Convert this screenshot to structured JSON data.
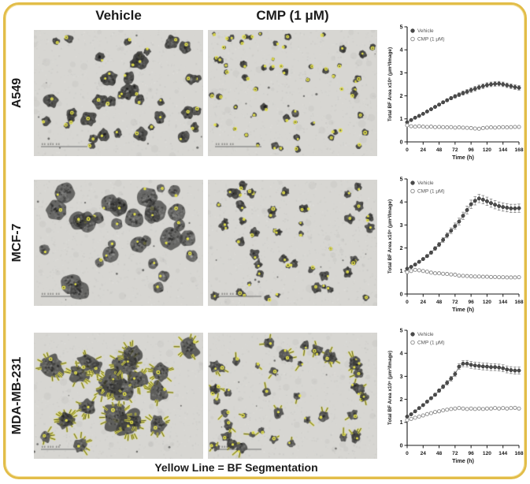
{
  "header": {
    "col1": "Vehicle",
    "col2": "CMP (1 μM)"
  },
  "rows": [
    {
      "label": "A549"
    },
    {
      "label": "MCF-7"
    },
    {
      "label": "MDA-MB-231"
    }
  ],
  "caption": "Yellow Line = BF Segmentation",
  "colors": {
    "frame": "#e2bd49",
    "micro_bg": "#d7d6d2",
    "spheroid": "#3c3c3a",
    "segmentation_outline": "#e6e34a",
    "vehicle_marker": "#4b4b4b",
    "cmp_marker_stroke": "#8a8a8a",
    "axis": "#1a1a1a",
    "error_bar": "#7a7a7a"
  },
  "panels": [
    {
      "cell_line": "A549",
      "treatment": "Vehicle",
      "seed": 7,
      "count": 40,
      "rmin": 3.5,
      "rmax": 10,
      "irr": 0.25,
      "spike": 0,
      "dark": 0.88
    },
    {
      "cell_line": "A549",
      "treatment": "CMP (1 μM)",
      "seed": 13,
      "count": 60,
      "rmin": 1.8,
      "rmax": 5,
      "irr": 0.22,
      "spike": 0,
      "dark": 0.92
    },
    {
      "cell_line": "MCF-7",
      "treatment": "Vehicle",
      "seed": 21,
      "count": 33,
      "rmin": 5,
      "rmax": 14,
      "irr": 0.12,
      "spike": 0,
      "dark": 0.72
    },
    {
      "cell_line": "MCF-7",
      "treatment": "CMP (1 μM)",
      "seed": 29,
      "count": 50,
      "rmin": 2.5,
      "rmax": 6.5,
      "irr": 0.35,
      "spike": 0,
      "dark": 0.88
    },
    {
      "cell_line": "MDA-MB-231",
      "treatment": "Vehicle",
      "seed": 37,
      "count": 22,
      "rmin": 6,
      "rmax": 16,
      "irr": 0.3,
      "spike": 1,
      "dark": 0.78
    },
    {
      "cell_line": "MDA-MB-231",
      "treatment": "CMP (1 μM)",
      "seed": 43,
      "count": 48,
      "rmin": 3,
      "rmax": 7.5,
      "irr": 0.3,
      "spike": 0.3,
      "dark": 0.82
    }
  ],
  "chart_data": [
    {
      "type": "line",
      "cell_line": "A549",
      "xlabel": "Time (h)",
      "ylabel": "Total BF Area x10⁶ (μm²/Image)",
      "xlim": [
        0,
        168
      ],
      "ylim": [
        0,
        5
      ],
      "xticks": [
        0,
        24,
        48,
        72,
        96,
        120,
        144,
        168
      ],
      "yticks": [
        0,
        1,
        2,
        3,
        4,
        5
      ],
      "legend_position": "top-left",
      "x": [
        0,
        6,
        12,
        18,
        24,
        30,
        36,
        42,
        48,
        54,
        60,
        66,
        72,
        78,
        84,
        90,
        96,
        102,
        108,
        114,
        120,
        126,
        132,
        138,
        144,
        150,
        156,
        162,
        168
      ],
      "series": [
        {
          "name": "Vehicle",
          "marker": "filled",
          "values": [
            0.85,
            0.95,
            1.05,
            1.13,
            1.22,
            1.32,
            1.42,
            1.52,
            1.62,
            1.72,
            1.81,
            1.9,
            1.98,
            2.05,
            2.12,
            2.18,
            2.25,
            2.31,
            2.37,
            2.42,
            2.47,
            2.5,
            2.52,
            2.53,
            2.5,
            2.46,
            2.42,
            2.38,
            2.35
          ],
          "err_max": 0.1
        },
        {
          "name": "CMP (1 μM)",
          "marker": "open",
          "values": [
            0.72,
            0.68,
            0.66,
            0.68,
            0.66,
            0.65,
            0.66,
            0.64,
            0.65,
            0.64,
            0.63,
            0.64,
            0.62,
            0.63,
            0.62,
            0.61,
            0.6,
            0.58,
            0.57,
            0.6,
            0.62,
            0.63,
            0.62,
            0.63,
            0.64,
            0.63,
            0.64,
            0.65,
            0.65
          ],
          "err_max": 0.02
        }
      ]
    },
    {
      "type": "line",
      "cell_line": "MCF-7",
      "xlabel": "Time (h)",
      "ylabel": "Total BF Area x10⁶ (μm²/Image)",
      "xlim": [
        0,
        168
      ],
      "ylim": [
        0,
        5
      ],
      "xticks": [
        0,
        24,
        48,
        72,
        96,
        120,
        144,
        168
      ],
      "yticks": [
        0,
        1,
        2,
        3,
        4,
        5
      ],
      "legend_position": "top-left",
      "x": [
        0,
        6,
        12,
        18,
        24,
        30,
        36,
        42,
        48,
        54,
        60,
        66,
        72,
        78,
        84,
        90,
        96,
        102,
        108,
        114,
        120,
        126,
        132,
        138,
        144,
        150,
        156,
        162,
        168
      ],
      "series": [
        {
          "name": "Vehicle",
          "marker": "filled",
          "values": [
            1.1,
            1.18,
            1.28,
            1.4,
            1.52,
            1.65,
            1.8,
            1.98,
            2.15,
            2.35,
            2.55,
            2.75,
            2.95,
            3.15,
            3.4,
            3.65,
            3.9,
            4.05,
            4.15,
            4.1,
            4.03,
            3.95,
            3.88,
            3.82,
            3.78,
            3.75,
            3.72,
            3.72,
            3.73
          ],
          "err_max": 0.18
        },
        {
          "name": "CMP (1 μM)",
          "marker": "open",
          "values": [
            0.95,
            1.0,
            1.05,
            1.03,
            1.0,
            0.97,
            0.93,
            0.9,
            0.9,
            0.88,
            0.87,
            0.85,
            0.84,
            0.8,
            0.79,
            0.78,
            0.77,
            0.76,
            0.76,
            0.75,
            0.75,
            0.74,
            0.74,
            0.73,
            0.73,
            0.72,
            0.72,
            0.72,
            0.73
          ],
          "err_max": 0.04
        }
      ]
    },
    {
      "type": "line",
      "cell_line": "MDA-MB-231",
      "xlabel": "Time (h)",
      "ylabel": "Total BF Area x10⁶ (μm²/Image)",
      "xlim": [
        0,
        168
      ],
      "ylim": [
        0,
        5
      ],
      "xticks": [
        0,
        24,
        48,
        72,
        96,
        120,
        144,
        168
      ],
      "yticks": [
        0,
        1,
        2,
        3,
        4,
        5
      ],
      "legend_position": "top-left",
      "x": [
        0,
        6,
        12,
        18,
        24,
        30,
        36,
        42,
        48,
        54,
        60,
        66,
        72,
        78,
        84,
        90,
        96,
        102,
        108,
        114,
        120,
        126,
        132,
        138,
        144,
        150,
        156,
        162,
        168
      ],
      "series": [
        {
          "name": "Vehicle",
          "marker": "filled",
          "values": [
            1.25,
            1.35,
            1.48,
            1.62,
            1.75,
            1.9,
            2.05,
            2.2,
            2.38,
            2.55,
            2.72,
            2.9,
            3.1,
            3.42,
            3.55,
            3.55,
            3.5,
            3.47,
            3.45,
            3.43,
            3.42,
            3.4,
            3.4,
            3.38,
            3.35,
            3.3,
            3.27,
            3.25,
            3.25
          ],
          "err_max": 0.15
        },
        {
          "name": "CMP (1 μM)",
          "marker": "open",
          "values": [
            1.1,
            1.15,
            1.2,
            1.25,
            1.3,
            1.36,
            1.4,
            1.45,
            1.48,
            1.52,
            1.55,
            1.58,
            1.6,
            1.62,
            1.6,
            1.58,
            1.6,
            1.58,
            1.6,
            1.58,
            1.6,
            1.6,
            1.62,
            1.6,
            1.62,
            1.6,
            1.62,
            1.63,
            1.6
          ],
          "err_max": 0.05
        }
      ]
    }
  ]
}
